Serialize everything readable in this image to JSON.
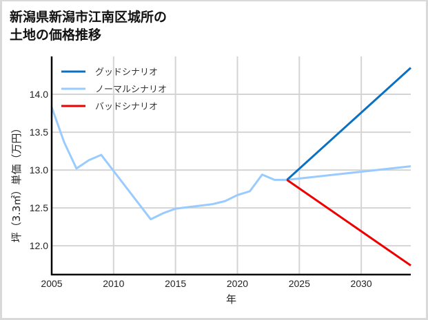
{
  "title": "新潟県新潟市江南区城所の\n土地の価格推移",
  "chart_data": {
    "type": "line",
    "title": "新潟県新潟市江南区城所の土地の価格推移",
    "xlabel": "年",
    "ylabel": "坪（3.3㎡）単価（万円）",
    "xlim": [
      2005,
      2034
    ],
    "ylim": [
      11.62,
      14.5
    ],
    "xticks": [
      2005,
      2010,
      2015,
      2020,
      2025,
      2030
    ],
    "yticks": [
      12.0,
      12.5,
      13.0,
      13.5,
      14.0
    ],
    "ytick_labels": [
      "12.0",
      "12.5",
      "13.0",
      "13.5",
      "14.0"
    ],
    "grid": true,
    "legend_position": "upper left",
    "series": [
      {
        "name": "グッドシナリオ",
        "color": "#0a70c2",
        "x": [
          2024,
          2034
        ],
        "values": [
          12.87,
          14.35
        ]
      },
      {
        "name": "ノーマルシナリオ",
        "color": "#99cbff",
        "x": [
          2005,
          2006,
          2007,
          2008,
          2009,
          2013,
          2014,
          2015,
          2016,
          2017,
          2018,
          2019,
          2020,
          2021,
          2022,
          2023,
          2024,
          2034
        ],
        "values": [
          13.83,
          13.37,
          13.02,
          13.13,
          13.2,
          12.35,
          12.43,
          12.49,
          12.51,
          12.53,
          12.55,
          12.59,
          12.67,
          12.72,
          12.94,
          12.87,
          12.87,
          13.05
        ]
      },
      {
        "name": "バッドシナリオ",
        "color": "#ee0000",
        "x": [
          2024,
          2034
        ],
        "values": [
          12.87,
          11.74
        ]
      }
    ]
  }
}
